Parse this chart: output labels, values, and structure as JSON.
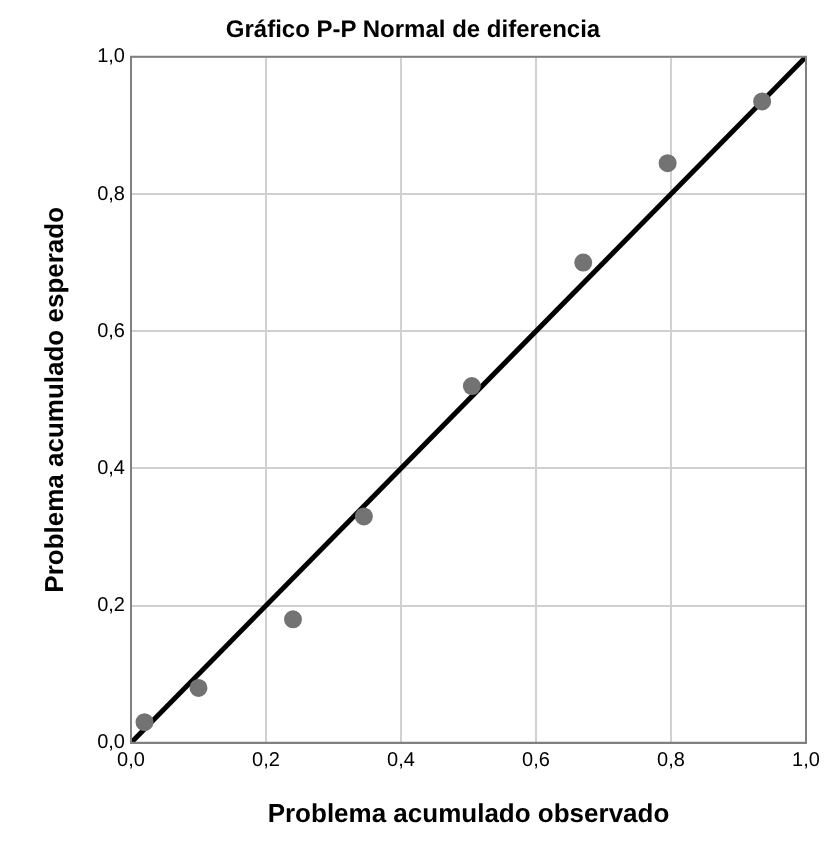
{
  "chart_data": {
    "type": "scatter",
    "title": "Gráfico P-P Normal de diferencia",
    "xlabel": "Problema acumulado observado",
    "ylabel": "Problema acumulado esperado",
    "x": [
      0.02,
      0.1,
      0.24,
      0.345,
      0.505,
      0.67,
      0.795,
      0.935
    ],
    "series": [
      {
        "color": "#737373",
        "marker": "circle",
        "values": [
          0.03,
          0.08,
          0.18,
          0.33,
          0.52,
          0.7,
          0.845,
          0.935
        ]
      },
      {
        "type": "line",
        "color": "#000000",
        "marker": "none",
        "x": [
          0,
          1
        ],
        "values": [
          0,
          1
        ]
      }
    ],
    "xlim": [
      0,
      1
    ],
    "ylim": [
      0,
      1
    ],
    "xticks": [
      {
        "value": 0,
        "label": "0,0"
      },
      {
        "value": 0.2,
        "label": "0,2"
      },
      {
        "value": 0.4,
        "label": "0,4"
      },
      {
        "value": 0.6,
        "label": "0,6"
      },
      {
        "value": 0.8,
        "label": "0,8"
      },
      {
        "value": 1,
        "label": "1,0"
      }
    ],
    "yticks": [
      {
        "value": 0,
        "label": "0,0"
      },
      {
        "value": 0.2,
        "label": "0,2"
      },
      {
        "value": 0.4,
        "label": "0,4"
      },
      {
        "value": 0.6,
        "label": "0,6"
      },
      {
        "value": 0.8,
        "label": "0,8"
      },
      {
        "value": 1,
        "label": "1,0"
      }
    ],
    "grid": true,
    "legend": false
  }
}
